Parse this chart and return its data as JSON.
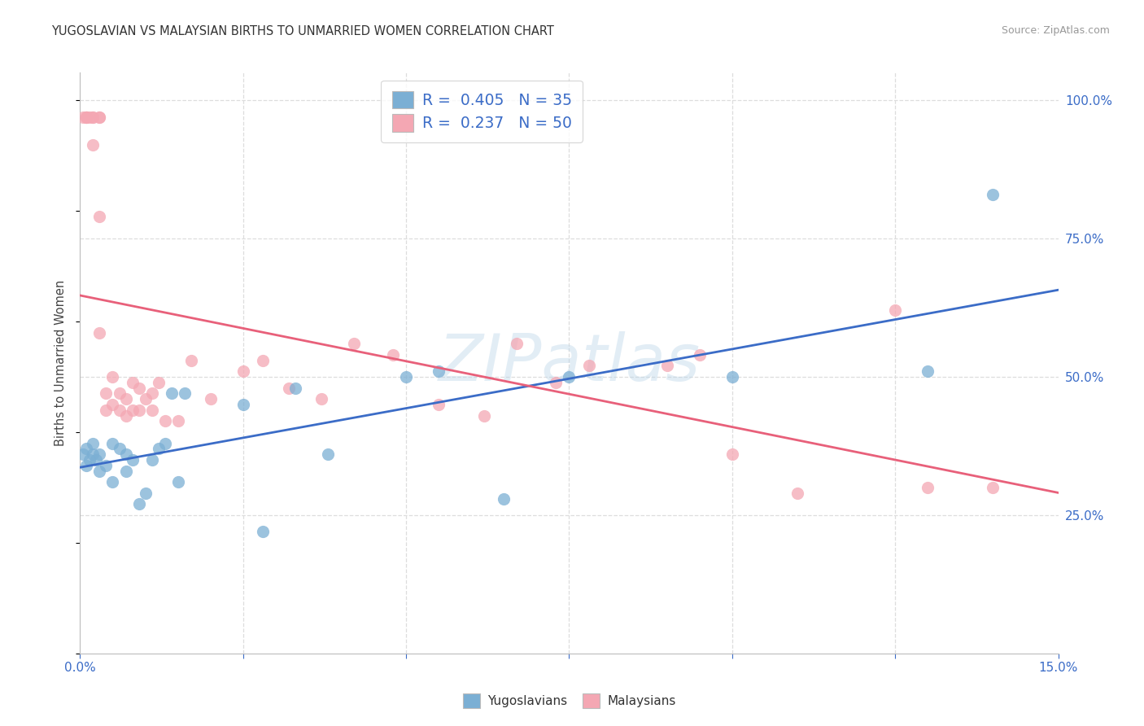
{
  "title": "YUGOSLAVIAN VS MALAYSIAN BIRTHS TO UNMARRIED WOMEN CORRELATION CHART",
  "source": "Source: ZipAtlas.com",
  "ylabel": "Births to Unmarried Women",
  "xlim": [
    0.0,
    0.15
  ],
  "ylim": [
    0.0,
    1.05
  ],
  "yticks_right": [
    0.25,
    0.5,
    0.75,
    1.0
  ],
  "watermark": "ZIPatlas",
  "legend_r1": "0.405",
  "legend_n1": "35",
  "legend_r2": "0.237",
  "legend_n2": "50",
  "legend_label1": "Yugoslavians",
  "legend_label2": "Malaysians",
  "blue_scatter": "#7BAFD4",
  "pink_scatter": "#F4A7B3",
  "blue_line": "#3B6CC7",
  "pink_line": "#E8607A",
  "title_fontsize": 10.5,
  "yug_x": [
    0.0005,
    0.001,
    0.001,
    0.0015,
    0.002,
    0.002,
    0.0025,
    0.003,
    0.003,
    0.004,
    0.005,
    0.005,
    0.006,
    0.007,
    0.007,
    0.008,
    0.009,
    0.01,
    0.011,
    0.012,
    0.013,
    0.014,
    0.015,
    0.016,
    0.025,
    0.028,
    0.033,
    0.038,
    0.05,
    0.055,
    0.065,
    0.075,
    0.1,
    0.13,
    0.14
  ],
  "yug_y": [
    0.36,
    0.34,
    0.37,
    0.35,
    0.36,
    0.38,
    0.35,
    0.33,
    0.36,
    0.34,
    0.31,
    0.38,
    0.37,
    0.33,
    0.36,
    0.35,
    0.27,
    0.29,
    0.35,
    0.37,
    0.38,
    0.47,
    0.31,
    0.47,
    0.45,
    0.22,
    0.48,
    0.36,
    0.5,
    0.51,
    0.28,
    0.5,
    0.5,
    0.51,
    0.83
  ],
  "mal_x": [
    0.0005,
    0.001,
    0.001,
    0.001,
    0.0015,
    0.002,
    0.002,
    0.002,
    0.003,
    0.003,
    0.003,
    0.003,
    0.004,
    0.004,
    0.005,
    0.005,
    0.006,
    0.006,
    0.007,
    0.007,
    0.008,
    0.008,
    0.009,
    0.009,
    0.01,
    0.011,
    0.011,
    0.012,
    0.013,
    0.015,
    0.017,
    0.02,
    0.025,
    0.028,
    0.032,
    0.037,
    0.042,
    0.048,
    0.055,
    0.062,
    0.067,
    0.073,
    0.078,
    0.09,
    0.095,
    0.1,
    0.11,
    0.125,
    0.13,
    0.14
  ],
  "mal_y": [
    0.97,
    0.97,
    0.97,
    0.97,
    0.97,
    0.97,
    0.97,
    0.92,
    0.97,
    0.97,
    0.79,
    0.58,
    0.44,
    0.47,
    0.45,
    0.5,
    0.44,
    0.47,
    0.43,
    0.46,
    0.44,
    0.49,
    0.44,
    0.48,
    0.46,
    0.44,
    0.47,
    0.49,
    0.42,
    0.42,
    0.53,
    0.46,
    0.51,
    0.53,
    0.48,
    0.46,
    0.56,
    0.54,
    0.45,
    0.43,
    0.56,
    0.49,
    0.52,
    0.52,
    0.54,
    0.36,
    0.29,
    0.62,
    0.3,
    0.3
  ],
  "background_color": "#FFFFFF",
  "grid_color": "#DDDDDD"
}
